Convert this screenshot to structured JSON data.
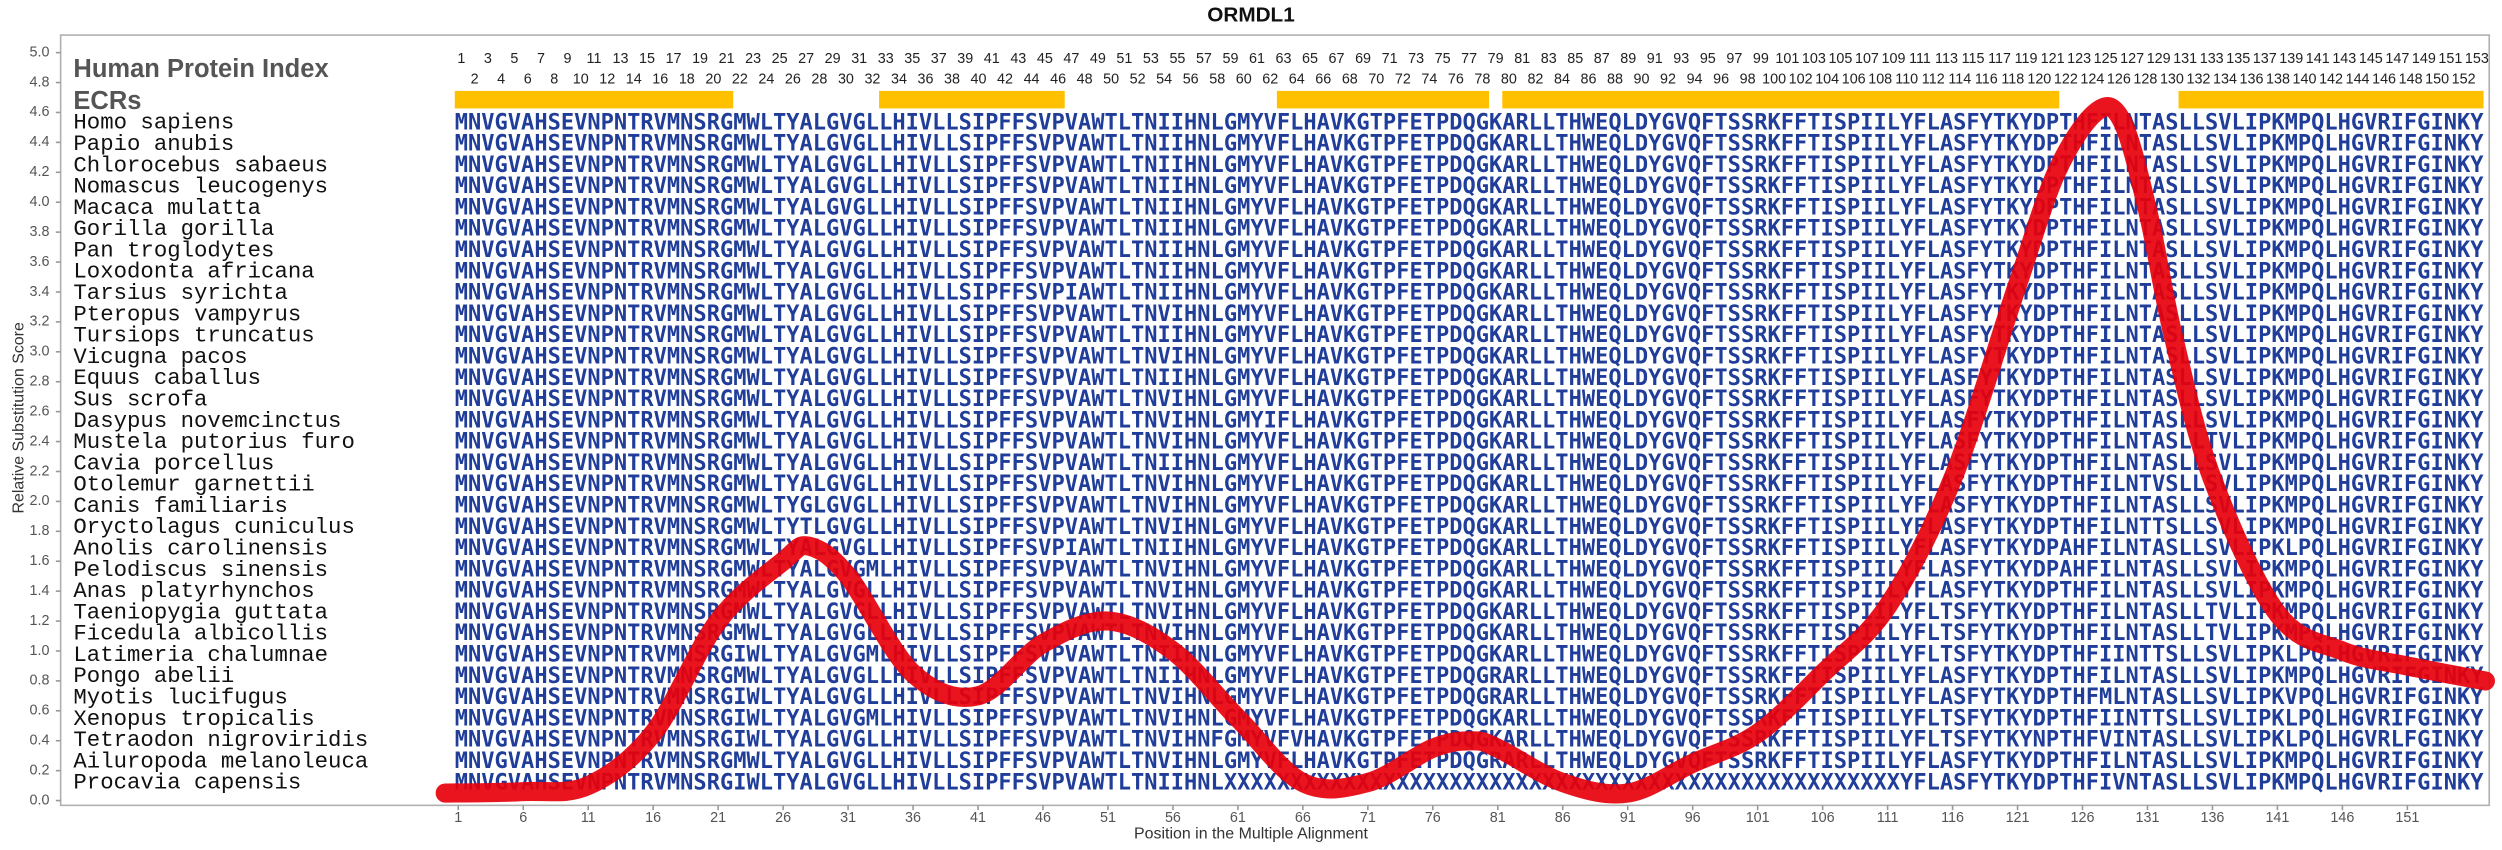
{
  "chart_data": {
    "type": "line",
    "title": "ORMDL1",
    "x_label": "Position in the Multiple Alignment",
    "y_label": "Relative Substitution Score",
    "x": [
      0,
      6,
      11,
      16,
      21,
      26,
      28,
      31,
      36,
      41,
      46,
      51,
      56,
      61,
      66,
      71,
      76,
      79,
      81,
      86,
      91,
      96,
      101,
      106,
      111,
      116,
      121,
      124,
      127,
      129,
      131,
      133,
      136,
      141,
      146,
      151,
      157
    ],
    "series": [
      {
        "color": "#e8000b",
        "values": [
          0.05,
          0.06,
          0.1,
          0.45,
          1.2,
          1.6,
          1.7,
          1.5,
          0.85,
          0.7,
          1.05,
          1.2,
          1.0,
          0.55,
          0.12,
          0.12,
          0.35,
          0.4,
          0.35,
          0.12,
          0.05,
          0.25,
          0.45,
          0.85,
          1.3,
          2.15,
          3.45,
          4.2,
          4.6,
          4.55,
          3.95,
          3.1,
          2.15,
          1.25,
          1.0,
          0.9,
          0.8
        ]
      }
    ],
    "xlim": [
      -29.6,
      157.3
    ],
    "ylim": [
      0,
      5
    ],
    "xticks": [
      1,
      6,
      11,
      16,
      21,
      26,
      31,
      36,
      41,
      46,
      51,
      56,
      61,
      66,
      71,
      76,
      81,
      86,
      91,
      96,
      101,
      106,
      111,
      116,
      121,
      126,
      131,
      136,
      141,
      146,
      151
    ],
    "yticks": [
      {
        "value": 0,
        "label": "0.0"
      },
      {
        "value": 0.2,
        "label": "0.2"
      },
      {
        "value": 0.4,
        "label": "0.4"
      },
      {
        "value": 0.6,
        "label": "0.6"
      },
      {
        "value": 0.8,
        "label": "0.8"
      },
      {
        "value": 1,
        "label": "1.0"
      },
      {
        "value": 1.2,
        "label": "1.2"
      },
      {
        "value": 1.4,
        "label": "1.4"
      },
      {
        "value": 1.6,
        "label": "1.6"
      },
      {
        "value": 1.8,
        "label": "1.8"
      },
      {
        "value": 2,
        "label": "2.0"
      },
      {
        "value": 2.2,
        "label": "2.2"
      },
      {
        "value": 2.4,
        "label": "2.4"
      },
      {
        "value": 2.6,
        "label": "2.6"
      },
      {
        "value": 2.8,
        "label": "2.8"
      },
      {
        "value": 3,
        "label": "3.0"
      },
      {
        "value": 3.2,
        "label": "3.2"
      },
      {
        "value": 3.4,
        "label": "3.4"
      },
      {
        "value": 3.6,
        "label": "3.6"
      },
      {
        "value": 3.8,
        "label": "3.8"
      },
      {
        "value": 4,
        "label": "4.0"
      },
      {
        "value": 4.2,
        "label": "4.2"
      },
      {
        "value": 4.4,
        "label": "4.4"
      },
      {
        "value": 4.6,
        "label": "4.6"
      },
      {
        "value": 4.8,
        "label": "4.8"
      },
      {
        "value": 5,
        "label": "5.0"
      }
    ]
  },
  "alignment": {
    "index_label": "Human Protein Index",
    "ecr_label": "ECRs",
    "ecr_color": "#ffc000",
    "sequence_color": "#1f3d99",
    "index": [
      1,
      2,
      3,
      4,
      5,
      6,
      7,
      8,
      9,
      10,
      11,
      12,
      13,
      14,
      15,
      16,
      17,
      18,
      19,
      20,
      21,
      22,
      23,
      24,
      25,
      26,
      27,
      28,
      29,
      30,
      31,
      32,
      33,
      34,
      35,
      36,
      37,
      38,
      39,
      40,
      41,
      42,
      43,
      44,
      45,
      46,
      47,
      48,
      49,
      50,
      51,
      52,
      53,
      54,
      55,
      56,
      57,
      58,
      59,
      60,
      61,
      62,
      63,
      64,
      65,
      66,
      67,
      68,
      69,
      70,
      71,
      72,
      73,
      74,
      75,
      76,
      77,
      78,
      79,
      80,
      81,
      82,
      83,
      84,
      85,
      86,
      87,
      88,
      89,
      90,
      91,
      92,
      93,
      94,
      95,
      96,
      97,
      98,
      99,
      100,
      101,
      102,
      103,
      104,
      105,
      106,
      107,
      108,
      109,
      110,
      111,
      112,
      113,
      114,
      115,
      116,
      117,
      118,
      119,
      120,
      121,
      122,
      123,
      124,
      125,
      126,
      127,
      128,
      129,
      130,
      131,
      132,
      133,
      134,
      135,
      136,
      137,
      138,
      139,
      140,
      141,
      142,
      143,
      144,
      145,
      146,
      147,
      148,
      149,
      150,
      151,
      152,
      153
    ],
    "ecrs": [
      [
        1,
        21
      ],
      [
        33,
        46
      ],
      [
        63,
        78
      ],
      [
        80,
        121
      ],
      [
        131,
        153
      ]
    ],
    "rows": [
      {
        "species": "Homo sapiens",
        "sequence": "MNVGVAHSEVNPNTRVMNSRGMWLTYALGVGLLHIVLLSIPFFSVPVAWTLTNIIHNLGMYVFLHAVKGTPFETPDQGKARLLTHWEQLDYGVQFTSSRKFFTISPIILYFLASFYTKYDPTHFILNTASLLSVLIPKMPQLHGVRIFGINKY"
      },
      {
        "species": "Papio anubis",
        "sequence": "MNVGVAHSEVNPNTRVMNSRGMWLTYALGVGLLHIVLLSIPFFSVPVAWTLTNIIHNLGMYVFLHAVKGTPFETPDQGKARLLTHWEQLDYGVQFTSSRKFFTISPIILYFLASFYTKYDPTHFILNTASLLSVLIPKMPQLHGVRIFGINKY"
      },
      {
        "species": "Chlorocebus sabaeus",
        "sequence": "MNVGVAHSEVNPNTRVMNSRGMWLTYALGVGLLHIVLLSIPFFSVPVAWTLTNIIHNLGMYVFLHAVKGTPFETPDQGKARLLTHWEQLDYGVQFTSSRKFFTISPIILYFLASFYTKYDPTHFILNTASLLSVLIPKMPQLHGVRIFGINKY"
      },
      {
        "species": "Nomascus leucogenys",
        "sequence": "MNVGVAHSEVNPNTRVMNSRGMWLTYALGVGLLHIVLLSIPFFSVPVAWTLTNIIHNLGMYVFLHAVKGTPFETPDQGKARLLTHWEQLDYGVQFTSSRKFFTISPIILYFLASFYTKYDPTHFILNTASLLSVLIPKMPQLHGVRIFGINKY"
      },
      {
        "species": "Macaca mulatta",
        "sequence": "MNVGVAHSEVNPNTRVMNSRGMWLTYALGVGLLHIVLLSIPFFSVPVAWTLTNIIHNLGMYVFLHAVKGTPFETPDQGKARLLTHWEQLDYGVQFTSSRKFFTISPIILYFLASFYTKYDPTHFILNTASLLSVLIPKMPQLHGVRIFGINKY"
      },
      {
        "species": "Gorilla gorilla",
        "sequence": "MNVGVAHSEVNPNTRVMNSRGMWLTYALGVGLLHIVLLSIPFFSVPVAWTLTNIIHNLGMYVFLHAVKGTPFETPDQGKARLLTHWEQLDYGVQFTSSRKFFTISPIILYFLASFYTKYDPTHFILNTASLLSVLIPKMPQLHGVRIFGINKY"
      },
      {
        "species": "Pan troglodytes",
        "sequence": "MNVGVAHSEVNPNTRVMNSRGMWLTYALGVGLLHIVLLSIPFFSVPVAWTLTNIIHNLGMYVFLHAVKGTPFETPDQGKARLLTHWEQLDYGVQFTSSRKFFTISPIILYFLASFYTKYDPTHFILNTASLLSVLIPKMPQLHGVRIFGINKY"
      },
      {
        "species": "Loxodonta africana",
        "sequence": "MNVGVAHSEVNPNTRVMNSRGMWLTYALGVGLLHIVLLSIPFFSVPVAWTLTNIIHNLGMYVFLHAVKGTPFETPDQGKARLLTHWEQLDYGVQFTSSRKFFTISPIILYFLASFYTKYDPTHFILNTASLLSVLIPKMPQLHGVRIFGINKY"
      },
      {
        "species": "Tarsius syrichta",
        "sequence": "MNVGVAHSEVNPNTRVMNSRGMWLTYALGVGLLHIVLLSIPFFSVPIAWTLTNIIHNLGMYVFLHAVKGTPFETPDQGKARLLTHWEQLDYGVQFTSSRKFFTISPIILYFLASFYTKYDPTHFILNTASLLSVLIPKMPQLHGVRIFGINKY"
      },
      {
        "species": "Pteropus vampyrus",
        "sequence": "MNVGVAHSEVNPNTRVMNSRGMWLTYALGVGLLHIVLLSIPFFSVPVAWTLTNVIHNLGMYVFLHAVKGTPFETPDQGKARLLTHWEQLDYGVQFTSSRKFFTISPIILYFLASFYTKYDPTHFILNTASLLSVLIPKMPQLHGVRIFGINKY"
      },
      {
        "species": "Tursiops truncatus",
        "sequence": "MNVGVAHSEVNPNTRVMNSRGMWLTYALGVGLLHIVLLSIPFFSVPVAWTLTNIIHNLGMYVFLHAVKGTPFETPDQGKARLLTHWEQLDYGVQFTSSRKFFTISPIILYFLASFYTKYDPTHFILNTASLLSVLIPKMPQLHGVRIFGINKY"
      },
      {
        "species": "Vicugna pacos",
        "sequence": "MNVGVAHSEVNPNTRVMNSRGMWLTYALGVGLLHIVLLSIPFFSVPVAWTLTNVIHNLGMYVFLHAVKGTPFETPDQGKARLLTHWEQLDYGVQFTSSRKFFTISPIILYFLASFYTKYDPTHFILNTASLLSVLIPKMPQLHGVRIFGINKY"
      },
      {
        "species": "Equus caballus",
        "sequence": "MNVGVAHSEVNPNTRVMNSRGMWLTYALGVGLLHIVLLSIPFFSVPVAWTLTNIIHNLGMYVFLHAVKGTPFETPDQGKARLLTHWEQLDYGVQFTSSRKFFTISPIILYFLASFYTKYDPTHFILNTASLLSVLIPKMPQLHGVRIFGINKY"
      },
      {
        "species": "Sus scrofa",
        "sequence": "MNVGVAHSEVNPNTRVMNSRGMWLTYALGVGLLHIVLLSIPFFSVPVAWTLTNVIHNLGMYVFLHAVKGTPFETPDQGKARLLTHWEQLDYGVQFTSSRKFFTISPIILYFLASFYTKYDPTHFILNTASLLSVLIPKMPQLHGVRIFGINKY"
      },
      {
        "species": "Dasypus novemcinctus",
        "sequence": "MNVGVAHSEVNPNTRVMNSRGMWLTYALGVGLLHIVLLSIPFFSVPVAWTLTNVIHNLGMYIFLHAVKGTPFETPDQGKARLLTHWEQLDYGVQFTSSRKFFTISPIILYFLASFYTKYDPTHFILNTASLLSVLIPKMPQLHGVRIFGINKY"
      },
      {
        "species": "Mustela putorius furo",
        "sequence": "MNVGVAHSEVNPNTRVMNSRGMWLTYALGVGLLHIVLLSIPFFSVPVAWTLTNVIHNLGMYVFLHAVKGTPFETPDQGKARLLTHWEQLDYGVQFTSSRKFFTISPIILYFLASFYTKYDPTHFILNTASLLTVLIPKMPQLHGVRIFGINKY"
      },
      {
        "species": "Cavia porcellus",
        "sequence": "MNVGVAHSEVNPNTRVMNSRGMWLTYALGVGLLHIVLLSIPFFSVPVAWTLTNIIHNLGMYVFLHAVKGTPFETPDQGKARLLTHWEQLDYGVQFTSSRKFFTISPIILYFLASFYTKYDPTHFILNTASLLSVLIPKMPQLHGVRIFGINKY"
      },
      {
        "species": "Otolemur garnettii",
        "sequence": "MNVGVAHSEVNPNTRVMNSRGMWLTYALGVGLLHIVLLSIPFFSVPVAWTLTNVIHNLGMYVFLHAVKGTPFETPDQGKARLLTHWEQLDYGVQFTSSRKFFTISPIILYFLASFYTKYDPTHFILNTVSLLSVLIPKMPQLHGVRIFGINKY"
      },
      {
        "species": "Canis familiaris",
        "sequence": "MNVGVAHSEVNPNTRVMNSRGMWLTYGLGVGLLHIVLLSIPFFSVPVAWTLTNVIHNLGMYVFLHAVKGTPFETPDQGKARLLTHWEQLDYGVQFTSSRKFFTISPIILYFLASFYTKYDPTHFILNTASLLSVLIPKMPQLHGVRIFGINKY"
      },
      {
        "species": "Oryctolagus cuniculus",
        "sequence": "MNVGVAHSEVNPNTRVMNSRGMWLTYTLGVGLLHIVLLSIPFFSVPVAWTLTNVIHNLGMYVFLHAVKGTPFETPDQGKARLLTHWEQLDYGVQFTSSRKFFTISPIILYFLASFYTKYDPTHFILNTTSLLSVLIPKMPQLHGVRIFGINKY"
      },
      {
        "species": "Anolis carolinensis",
        "sequence": "MNVGVAHSEVNPNTRVMNSRGMWLTYALGVGLLHIVLLSIPFFSVPIAWTLTNIIHNLGMYVFLHAVKGTPFETPDQGKARLLTHWEQLDYGVQFTSSRKFFTISPIILYFLASFYTKYDPAHFILNTASLLSVLIPKLPQLHGVRIFGINKY"
      },
      {
        "species": "Pelodiscus sinensis",
        "sequence": "MNVGVAHSEVNPNTRVMNSRGMWLTYALGVGMLHIVLLSIPFFSVPVAWTLTNVIHNLGMYVFLHAVKGTPFETPDQGKARLLTHWEQLDYGVQFTSSRKFFTISPIILYFLASFYTKYDPAHFILNTASLLSVLIPKMPQLHGVRIFGINKY"
      },
      {
        "species": "Anas platyrhynchos",
        "sequence": "MNVGVAHSEVNPNTRVMNSRGMWLTYALGVGLLHIVLLSIPFFSVPVAWTLTNVIHNLGMYVFLHAVKGTPFETPDQGKARLLTHWEQLDYGVQFTSSRKFFTISPIILYFLASFYTKYDPTHFILNTASLLSVLIPKMPQLHGVRIFGINKY"
      },
      {
        "species": "Taeniopygia guttata",
        "sequence": "MNVGVAHSEVNPNTRVMNSRGMWLTYALGVGLLHIVLLSIPFFSVPVAWTLTNVIHNLGMYVFLHAVKGTPFETPDQGKARLLTHWEQLDYGVQFTSSRKFFTISPIILYFLTSFYTKYDPTHFILNTASLLTVLIPKMPQLHGVRIFGINKY"
      },
      {
        "species": "Ficedula albicollis",
        "sequence": "MNVGVAHSEVNPNTRVMNSRGMWLTYALGVGLLHIVLLSIPFFSVPVAWTLTNVIHNLGMYVFLHAVKGTPFETPDQGKARLLTHWEQLDYGVQFTSSRKFFTISPIILYFLTSFYTKYDPTHFILNTASLLTVLIPKMPQLHGVRIFGINKY"
      },
      {
        "species": "Latimeria chalumnae",
        "sequence": "MNVGVAHSEVNPNTRVMNSRGIWLTYALGVGMLHIVLLSIPFFSVPVAWTLTNIIHNLGMYVFLHAVKGTPFETPDQGKARLLTHWEQLDYGVQFTSSRKFFTISPIILYFLTSFYTKYDPTHFIINTTSLLSVLIPKLPQLHGVRIFGINKY"
      },
      {
        "species": "Pongo abelii",
        "sequence": "MNVGVAHSEVNPNTRVMNSRGMWLTYALGVGLLHIVLLSIPFFSVPVAWTLTNIIHNLGMYVFLHAVKGTPFETPDQGRARLLTHWEQLDYGVQFTSSRKFFTISPIILYFLASFYTKYDPTHFILNTASLLSVLIPKMPQLHGVRIFGINKY"
      },
      {
        "species": "Myotis lucifugus",
        "sequence": "MNVGVAHSEVNPNTRVMNSRGIWLTYALGVGLLHIVLLSIPFFSVPVAWTLTNVIHNLGMYVFLHAVKGTPFETPDQGRARLLTHWEQLDYGVQFTSSRKFFTISPIILYFLASFYTKYDPTHFMLNTASLLSVLIPKVPQLHGVRIFGINKY"
      },
      {
        "species": "Xenopus tropicalis",
        "sequence": "MNVGVAHSEVNPNTRVMNSRGIWLTYALGVGMLHIVLLSIPFFSVPVAWTLTNVIHNLGMYVFLHAVKGTPFETPDQGKARLLTHWEQLDYGVQFTSSRKFFTISPIILYFLTSFYTKYDPTHFIINTTSLLSVLIPKLPQLHGVRIFGINKY"
      },
      {
        "species": "Tetraodon nigroviridis",
        "sequence": "MNVGVAHSEVNPNTRVMNSRGIWLTYALGVGLLHIVLLSIPFFSVPVAWTLTNVIHNFGMYVFVHAVKGTPFETPDQGKARLLTHWEQLDYGVQFTSSRKFFTISPIILYFLTSFYTKYNPTHFVINTASLLSVLIPKLPQLHGVRLFGINKY"
      },
      {
        "species": "Ailuropoda melanoleuca",
        "sequence": "MNVGVAHSEVNPNTRVMNSRGMWLTYALGVGLLHIVLLSIPFFSVPVAWTLTNVIHNLGMYVFLHAVKGTPFETPDQGRARLLTHWEQLDYGVQFTSSRKFFTISPIILYFLASFYTKYDPTHFILNTASLLSVLIPKMPQLHGVRIFGINKY"
      },
      {
        "species": "Procavia capensis",
        "sequence": "MNVGVAHSEVNPNTRVMNSRGIWLTYALGVGLLHIVLLSIPFFSVPVAWTLTNIIHNLXXXXXXXXXXXXXXXXXXXXXXXXXXXXXXXXXXXXXXXXXXXXXXXXXXXYFLASFYTKYDPTHFIVNTASLLSVLIPKMPQLHGVRIFGINKY"
      }
    ]
  }
}
